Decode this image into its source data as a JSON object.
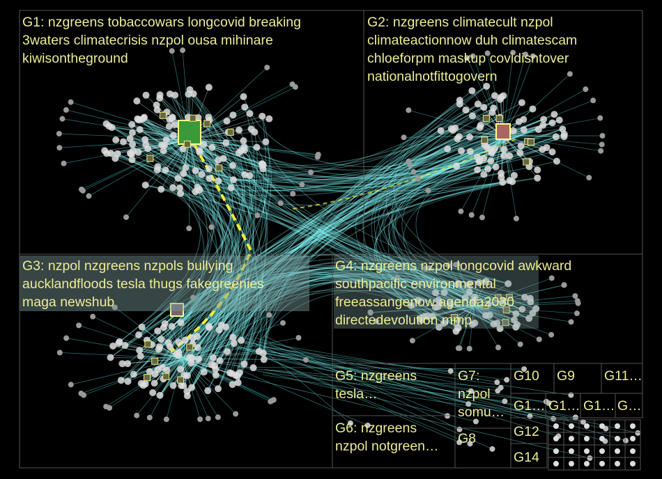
{
  "groups": [
    {
      "lines": [
        "G1: nzgreens tobaccowars longcovid breaking",
        "3waters climatecrisis nzpol ousa mihinare",
        "kiwisontheground"
      ]
    },
    {
      "lines": [
        "G2: nzgreens climatecult nzpol",
        "climateactionnow duh climatescam",
        "chloeforpm maskup covidisntover",
        "nationalnotfittogovern"
      ]
    },
    {
      "lines": [
        "G3: nzpol nzgreens nzpols bullying",
        "aucklandfloods tesla thugs fakegreenies",
        "maga newshub"
      ]
    },
    {
      "lines": [
        "G4: nzgreens nzpol longcovid awkward",
        "southpacific environmental",
        "freeassangenow agenda2030",
        "directedevolution mmp"
      ]
    },
    {
      "lines": [
        "G5: nzgreens",
        "tesla…"
      ]
    },
    {
      "lines": [
        "G6: nzgreens",
        "nzpol notgreen…"
      ]
    },
    {
      "lines": [
        "G7:",
        "nzpol",
        "somu…"
      ]
    },
    {
      "lines": [
        "G8"
      ]
    },
    {
      "lines": [
        "G10"
      ]
    },
    {
      "lines": [
        "G9"
      ]
    },
    {
      "lines": [
        "G11…"
      ]
    },
    {
      "lines": [
        "G1…"
      ]
    },
    {
      "lines": [
        "G1…"
      ]
    },
    {
      "lines": [
        "G1…"
      ]
    },
    {
      "lines": [
        "G…"
      ]
    },
    {
      "lines": [
        "G12"
      ]
    },
    {
      "lines": [
        "G14"
      ]
    }
  ]
}
